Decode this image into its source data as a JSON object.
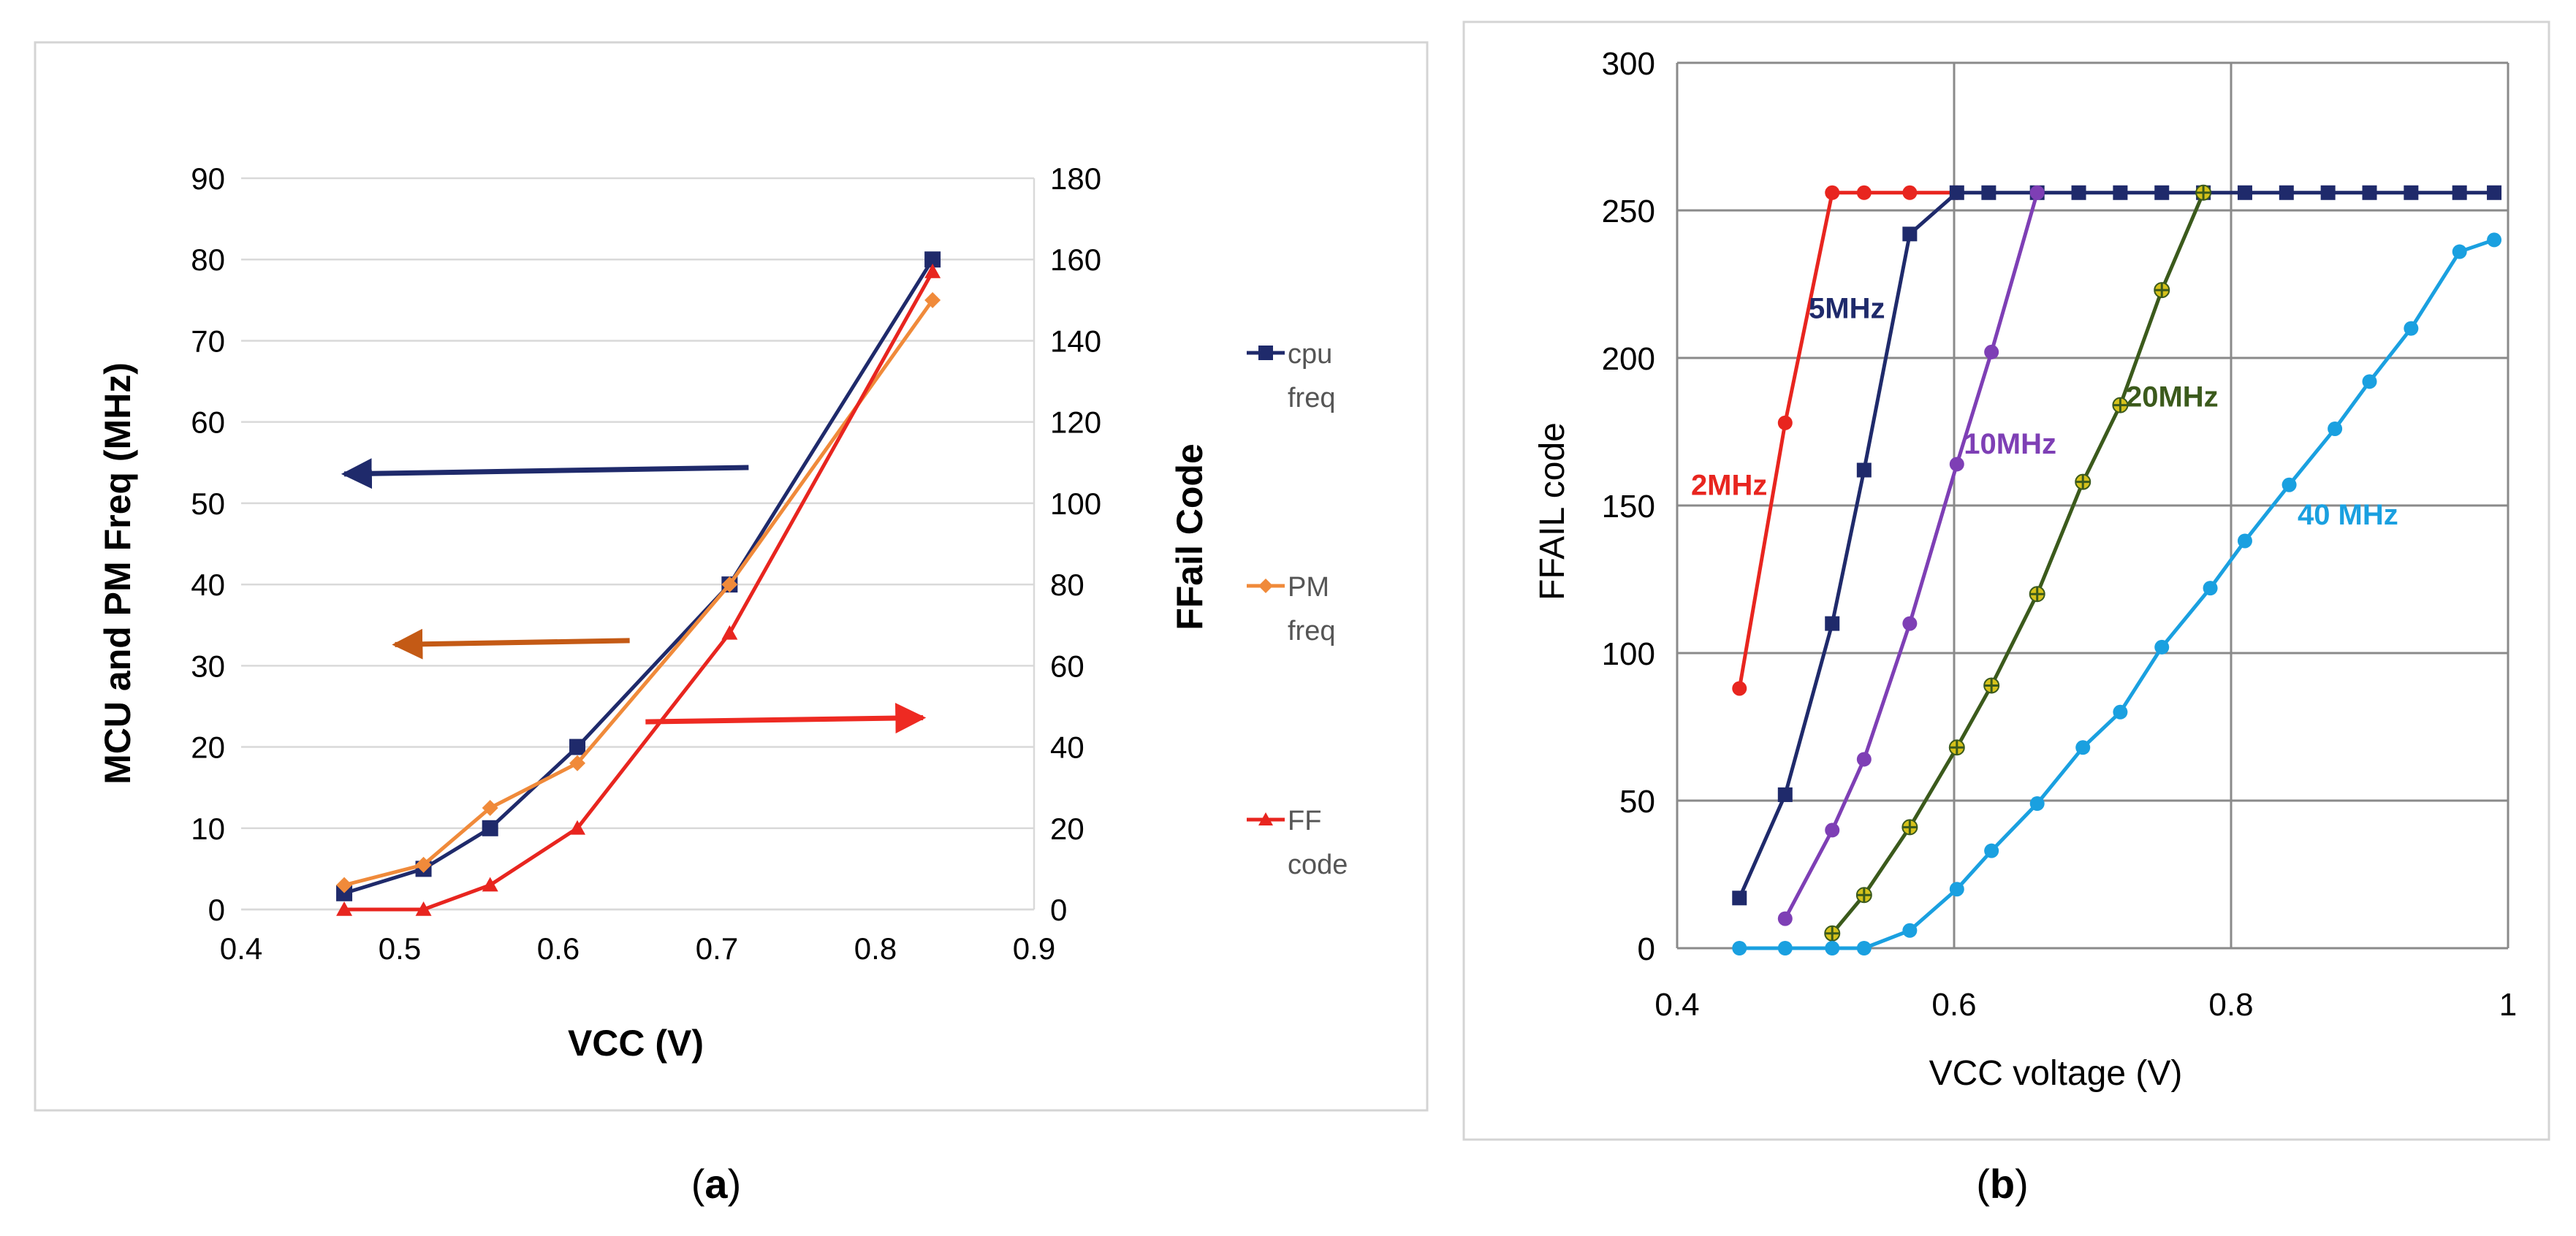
{
  "panels": {
    "a": {
      "label": "(a)",
      "letter": "a"
    },
    "b": {
      "label": "(b)",
      "letter": "b"
    }
  },
  "chart_data": [
    {
      "id": "a",
      "type": "line",
      "xlabel": "VCC (V)",
      "ylabel": "MCU and PM Freq (MHz)",
      "y2label": "FFail Code",
      "xlim": [
        0.4,
        0.9
      ],
      "ylim": [
        0,
        90
      ],
      "y2lim": [
        0,
        180
      ],
      "xticks": [
        0.4,
        0.5,
        0.6,
        0.7,
        0.8,
        0.9
      ],
      "xtick_labels": [
        "0.4",
        "0.5",
        "0.6",
        "0.7",
        "0.8",
        "0.9"
      ],
      "yticks": [
        0,
        10,
        20,
        30,
        40,
        50,
        60,
        70,
        80,
        90
      ],
      "ytick_labels": [
        "0",
        "10",
        "20",
        "30",
        "40",
        "50",
        "60",
        "70",
        "80",
        "90"
      ],
      "y2ticks": [
        0,
        20,
        40,
        60,
        80,
        100,
        120,
        140,
        160,
        180
      ],
      "y2tick_labels": [
        "0",
        "20",
        "40",
        "60",
        "80",
        "100",
        "120",
        "140",
        "160",
        "180"
      ],
      "grid": "horizontal",
      "legend_position": "right",
      "series": [
        {
          "name": "cpu freq",
          "legend": [
            "cpu",
            "freq"
          ],
          "color": "#1f2a6b",
          "marker": "square",
          "axis": "left",
          "x": [
            0.465,
            0.515,
            0.557,
            0.612,
            0.708,
            0.836
          ],
          "y": [
            2,
            5,
            10,
            20,
            40,
            80
          ]
        },
        {
          "name": "PM freq",
          "legend": [
            "PM",
            "freq"
          ],
          "color": "#f08a3a",
          "marker": "diamond",
          "axis": "left",
          "x": [
            0.465,
            0.515,
            0.557,
            0.612,
            0.708,
            0.836
          ],
          "y": [
            3,
            5.5,
            12.5,
            18,
            40,
            75
          ]
        },
        {
          "name": "FF code",
          "legend": [
            "FF",
            "code"
          ],
          "color": "#e8251f",
          "marker": "triangle",
          "axis": "right",
          "x": [
            0.465,
            0.515,
            0.557,
            0.612,
            0.708,
            0.836
          ],
          "y": [
            0,
            0,
            6,
            20,
            68,
            157
          ]
        }
      ],
      "annotations": [
        {
          "name": "cpu-axis-arrow",
          "kind": "arrow",
          "color": "#1f2a6b",
          "from": [
            0.72,
            54.4
          ],
          "to": [
            0.465,
            53.6
          ]
        },
        {
          "name": "pm-axis-arrow",
          "kind": "arrow",
          "color": "#c45a15",
          "from": [
            0.645,
            33.1
          ],
          "to": [
            0.497,
            32.6
          ]
        },
        {
          "name": "ff-axis-arrow",
          "kind": "arrow",
          "color": "#ee2a22",
          "from": [
            0.655,
            23.1
          ],
          "to": [
            0.83,
            23.6
          ]
        }
      ]
    },
    {
      "id": "b",
      "type": "line",
      "xlabel": "VCC voltage (V)",
      "ylabel": "FFAIL code",
      "xlim": [
        0.4,
        1.0
      ],
      "ylim": [
        0,
        300
      ],
      "xticks": [
        0.4,
        0.6,
        0.8,
        1.0
      ],
      "xtick_labels": [
        "0.4",
        "0.6",
        "0.8",
        "1"
      ],
      "yticks": [
        0,
        50,
        100,
        150,
        200,
        250,
        300
      ],
      "ytick_labels": [
        "0",
        "50",
        "100",
        "150",
        "200",
        "250",
        "300"
      ],
      "grid": "both",
      "series": [
        {
          "name": "2MHz",
          "label": "2MHz",
          "color": "#e8251f",
          "marker": "circle",
          "label_at": [
            0.41,
            157
          ],
          "label_color": "#e8251f",
          "x": [
            0.445,
            0.478,
            0.512,
            0.535,
            0.568,
            0.602
          ],
          "y": [
            88,
            178,
            256,
            256,
            256,
            256
          ]
        },
        {
          "name": "5MHz",
          "label": "5MHz",
          "color": "#1f2a6b",
          "marker": "square",
          "label_at": [
            0.495,
            217
          ],
          "label_color": "#1f2a6b",
          "x": [
            0.445,
            0.478,
            0.512,
            0.535,
            0.568,
            0.602,
            0.625,
            0.66,
            0.69,
            0.72,
            0.75,
            0.78,
            0.81,
            0.84,
            0.87,
            0.9,
            0.93,
            0.965,
            0.99
          ],
          "y": [
            17,
            52,
            110,
            162,
            242,
            256,
            256,
            256,
            256,
            256,
            256,
            256,
            256,
            256,
            256,
            256,
            256,
            256,
            256
          ]
        },
        {
          "name": "10MHz",
          "label": "10MHz",
          "color": "#7e3fb5",
          "marker": "circle",
          "label_at": [
            0.607,
            171
          ],
          "label_color": "#7e3fb5",
          "x": [
            0.478,
            0.512,
            0.535,
            0.568,
            0.602,
            0.627,
            0.66
          ],
          "y": [
            10,
            40,
            64,
            110,
            164,
            202,
            256
          ]
        },
        {
          "name": "20MHz",
          "label": "20MHz",
          "color": "#3b5a1c",
          "marker": "star",
          "label_at": [
            0.724,
            187
          ],
          "label_color": "#3b5a1c",
          "x": [
            0.512,
            0.535,
            0.568,
            0.602,
            0.627,
            0.66,
            0.693,
            0.72,
            0.75,
            0.78
          ],
          "y": [
            5,
            18,
            41,
            68,
            89,
            120,
            158,
            184,
            223,
            256
          ]
        },
        {
          "name": "40 MHz",
          "label": "40 MHz",
          "color": "#1aa0e0",
          "marker": "circle",
          "label_at": [
            0.848,
            147
          ],
          "label_color": "#1aa0e0",
          "x": [
            0.445,
            0.478,
            0.512,
            0.535,
            0.568,
            0.602,
            0.627,
            0.66,
            0.693,
            0.72,
            0.75,
            0.785,
            0.81,
            0.842,
            0.875,
            0.9,
            0.93,
            0.965,
            0.99
          ],
          "y": [
            0,
            0,
            0,
            0,
            6,
            20,
            33,
            49,
            68,
            80,
            102,
            122,
            138,
            157,
            176,
            192,
            210,
            236,
            240
          ]
        }
      ]
    }
  ]
}
